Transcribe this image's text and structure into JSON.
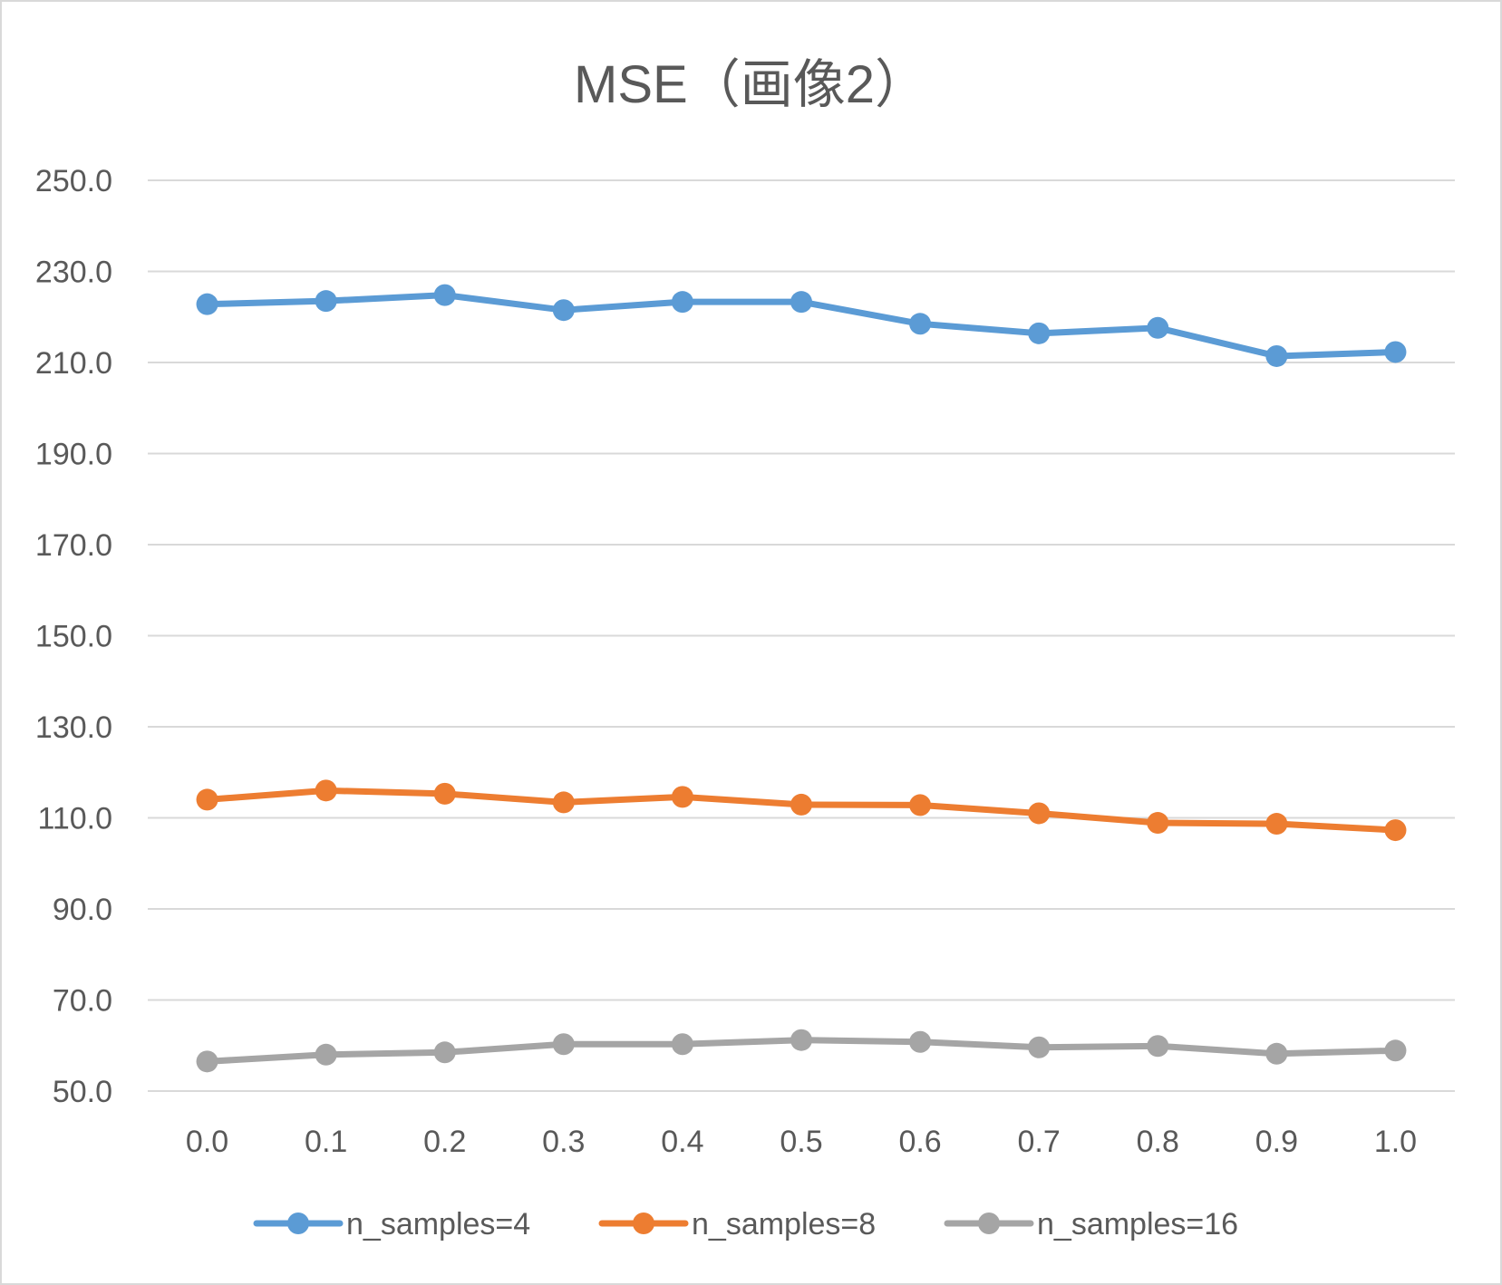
{
  "chart_data": {
    "type": "line",
    "title": "MSE（画像2）",
    "xlabel": "",
    "ylabel": "",
    "categories": [
      "0.0",
      "0.1",
      "0.2",
      "0.3",
      "0.4",
      "0.5",
      "0.6",
      "0.7",
      "0.8",
      "0.9",
      "1.0"
    ],
    "ylim": [
      50,
      250
    ],
    "yticks": [
      "250.0",
      "230.0",
      "210.0",
      "190.0",
      "170.0",
      "150.0",
      "130.0",
      "110.0",
      "90.0",
      "70.0",
      "50.0"
    ],
    "grid": true,
    "legend_position": "bottom",
    "series": [
      {
        "name": "n_samples=4",
        "color": "#5b9bd5",
        "values": [
          222.8,
          223.5,
          224.8,
          221.5,
          223.3,
          223.3,
          218.5,
          216.4,
          217.6,
          211.4,
          212.3
        ]
      },
      {
        "name": "n_samples=8",
        "color": "#ed7d31",
        "values": [
          114.0,
          116.0,
          115.3,
          113.4,
          114.6,
          112.9,
          112.8,
          111.0,
          108.9,
          108.7,
          107.3
        ]
      },
      {
        "name": "n_samples=16",
        "color": "#a5a5a5",
        "values": [
          56.5,
          58.0,
          58.5,
          60.3,
          60.3,
          61.2,
          60.8,
          59.6,
          59.9,
          58.2,
          58.9
        ]
      }
    ]
  }
}
